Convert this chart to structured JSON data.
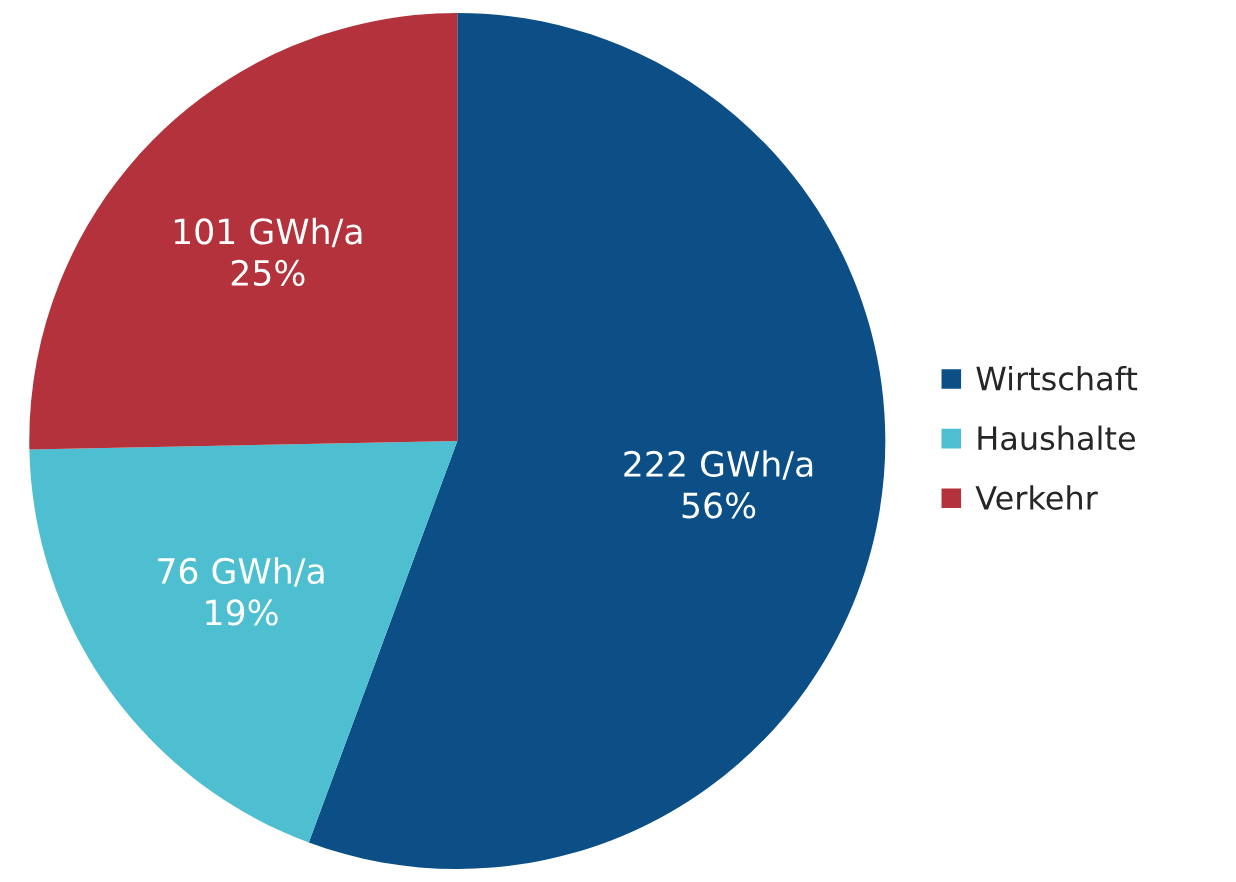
{
  "chart_data": {
    "type": "pie",
    "categories": [
      "Wirtschaft",
      "Haushalte",
      "Verkehr"
    ],
    "values": [
      222,
      76,
      101
    ],
    "colors": [
      "#0b4f86",
      "#4dbfd1",
      "#b3323b"
    ],
    "value_labels": [
      "222 GWh/a\n56%",
      "76 GWh/a\n19%",
      "101 GWh/a\n25%"
    ],
    "legend": "right"
  }
}
